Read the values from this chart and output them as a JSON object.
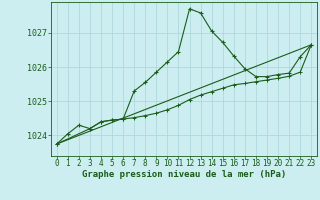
{
  "title": "Graphe pression niveau de la mer (hPa)",
  "background_color": "#cceef0",
  "plot_bg_color": "#cceef0",
  "grid_color": "#aad4d8",
  "line_color": "#1a5c1a",
  "xlim": [
    -0.5,
    23.5
  ],
  "ylim": [
    1023.4,
    1027.9
  ],
  "yticks": [
    1024,
    1025,
    1026,
    1027
  ],
  "xticks": [
    0,
    1,
    2,
    3,
    4,
    5,
    6,
    7,
    8,
    9,
    10,
    11,
    12,
    13,
    14,
    15,
    16,
    17,
    18,
    19,
    20,
    21,
    22,
    23
  ],
  "series1": [
    [
      0,
      1023.75
    ],
    [
      1,
      1024.05
    ],
    [
      2,
      1024.3
    ],
    [
      3,
      1024.2
    ],
    [
      4,
      1024.4
    ],
    [
      5,
      1024.45
    ],
    [
      6,
      1024.48
    ],
    [
      7,
      1025.3
    ],
    [
      8,
      1025.55
    ],
    [
      9,
      1025.85
    ],
    [
      10,
      1026.15
    ],
    [
      11,
      1026.45
    ],
    [
      12,
      1027.7
    ],
    [
      13,
      1027.58
    ],
    [
      14,
      1027.05
    ],
    [
      15,
      1026.72
    ],
    [
      16,
      1026.32
    ],
    [
      17,
      1025.95
    ],
    [
      18,
      1025.72
    ],
    [
      19,
      1025.72
    ],
    [
      20,
      1025.78
    ],
    [
      21,
      1025.82
    ],
    [
      22,
      1026.3
    ],
    [
      23,
      1026.65
    ]
  ],
  "series2": [
    [
      0,
      1023.75
    ],
    [
      23,
      1026.65
    ]
  ],
  "series3": [
    [
      0,
      1023.75
    ],
    [
      3,
      1024.2
    ],
    [
      4,
      1024.4
    ],
    [
      5,
      1024.45
    ],
    [
      6,
      1024.48
    ],
    [
      7,
      1024.52
    ],
    [
      8,
      1024.58
    ],
    [
      9,
      1024.65
    ],
    [
      10,
      1024.75
    ],
    [
      11,
      1024.88
    ],
    [
      12,
      1025.05
    ],
    [
      13,
      1025.18
    ],
    [
      14,
      1025.28
    ],
    [
      15,
      1025.38
    ],
    [
      16,
      1025.48
    ],
    [
      17,
      1025.52
    ],
    [
      18,
      1025.57
    ],
    [
      19,
      1025.62
    ],
    [
      20,
      1025.67
    ],
    [
      21,
      1025.73
    ],
    [
      22,
      1025.85
    ],
    [
      23,
      1026.65
    ]
  ],
  "title_fontsize": 6.5,
  "tick_fontsize": 5.5,
  "ytick_fontsize": 6.0
}
